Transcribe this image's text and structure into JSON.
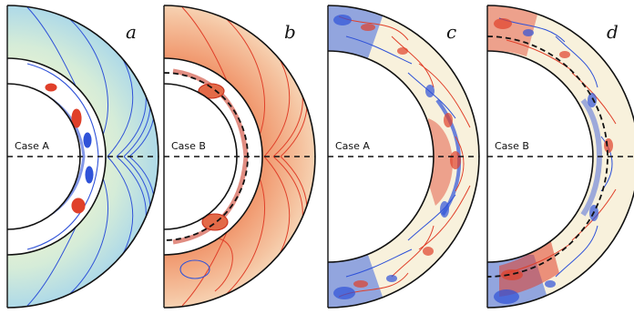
{
  "figure": {
    "panels": [
      {
        "letter": "a",
        "case_label": "Case A",
        "kind": "field-lines-blue",
        "inner_dashed_arc": false
      },
      {
        "letter": "b",
        "case_label": "Case B",
        "kind": "field-lines-red",
        "inner_dashed_arc": true
      },
      {
        "letter": "c",
        "case_label": "Case A",
        "kind": "turbulent-shell",
        "inner_dashed_arc": false
      },
      {
        "letter": "d",
        "case_label": "Case B",
        "kind": "turbulent-shell",
        "inner_dashed_arc": true
      }
    ],
    "colors": {
      "positive": "#e0402a",
      "negative": "#2f52d8",
      "pale_positive": "#f6d6b8",
      "pale_negative": "#bfe0ea",
      "background_fill": "#f7f4cf"
    }
  }
}
